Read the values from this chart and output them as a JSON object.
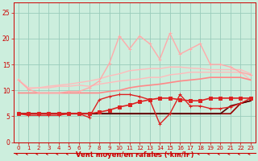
{
  "title": "",
  "xlabel": "Vent moyen/en rafales ( km/h )",
  "bg_color": "#cceedd",
  "grid_color": "#99ccbb",
  "x": [
    0,
    1,
    2,
    3,
    4,
    5,
    6,
    7,
    8,
    9,
    10,
    11,
    12,
    13,
    14,
    15,
    16,
    17,
    18,
    19,
    20,
    21,
    22,
    23
  ],
  "lines": [
    {
      "y": [
        12.0,
        10.3,
        10.5,
        10.5,
        10.8,
        10.8,
        11.0,
        10.8,
        11.2,
        11.5,
        11.8,
        12.0,
        12.2,
        12.5,
        12.5,
        13.0,
        13.2,
        13.5,
        13.5,
        13.5,
        13.5,
        13.5,
        13.5,
        12.0
      ],
      "color": "#ffbbbb",
      "lw": 1.0,
      "marker": null,
      "ms": 0
    },
    {
      "y": [
        12.0,
        10.5,
        10.5,
        10.8,
        11.0,
        11.2,
        11.5,
        11.8,
        12.2,
        12.8,
        13.2,
        13.8,
        14.0,
        14.2,
        14.2,
        14.5,
        14.5,
        14.3,
        14.2,
        14.0,
        14.0,
        14.0,
        14.0,
        13.2
      ],
      "color": "#ffbbbb",
      "lw": 1.0,
      "marker": null,
      "ms": 0
    },
    {
      "y": [
        12.0,
        10.2,
        9.5,
        9.5,
        9.5,
        9.8,
        9.8,
        10.5,
        11.8,
        15.2,
        20.5,
        18.0,
        20.5,
        19.0,
        16.0,
        21.0,
        17.0,
        18.0,
        19.0,
        15.0,
        15.0,
        14.5,
        13.5,
        13.0
      ],
      "color": "#ffaaaa",
      "lw": 1.0,
      "marker": "+",
      "ms": 3
    },
    {
      "y": [
        9.5,
        9.5,
        9.5,
        9.5,
        9.5,
        9.5,
        9.5,
        9.5,
        9.5,
        9.8,
        10.0,
        10.5,
        10.8,
        11.0,
        11.2,
        11.5,
        11.8,
        12.0,
        12.2,
        12.5,
        12.5,
        12.5,
        12.5,
        12.0
      ],
      "color": "#ff8888",
      "lw": 1.2,
      "marker": null,
      "ms": 0
    },
    {
      "y": [
        5.5,
        5.5,
        5.5,
        5.5,
        5.5,
        5.5,
        5.5,
        5.5,
        5.8,
        6.2,
        6.8,
        7.2,
        7.8,
        8.2,
        8.5,
        8.5,
        8.2,
        8.0,
        8.0,
        8.5,
        8.5,
        8.5,
        8.5,
        8.5
      ],
      "color": "#dd2222",
      "lw": 1.2,
      "marker": "s",
      "ms": 2.5
    },
    {
      "y": [
        5.5,
        5.2,
        5.2,
        5.2,
        5.2,
        5.5,
        5.5,
        4.8,
        8.2,
        8.8,
        9.2,
        9.2,
        8.8,
        8.2,
        3.5,
        5.5,
        9.2,
        7.0,
        7.0,
        6.5,
        6.5,
        6.8,
        7.5,
        8.5
      ],
      "color": "#dd2222",
      "lw": 1.0,
      "marker": "+",
      "ms": 3
    },
    {
      "y": [
        5.5,
        5.5,
        5.5,
        5.5,
        5.5,
        5.5,
        5.5,
        5.5,
        5.5,
        5.5,
        5.5,
        5.5,
        5.5,
        5.5,
        5.5,
        5.5,
        5.5,
        5.5,
        5.5,
        5.5,
        5.5,
        5.5,
        7.5,
        8.0
      ],
      "color": "#990000",
      "lw": 1.2,
      "marker": null,
      "ms": 0
    },
    {
      "y": [
        5.5,
        5.5,
        5.5,
        5.5,
        5.5,
        5.5,
        5.5,
        5.5,
        5.5,
        5.5,
        5.5,
        5.5,
        5.5,
        5.5,
        5.5,
        5.5,
        5.5,
        5.5,
        5.5,
        5.5,
        5.5,
        7.0,
        7.5,
        8.0
      ],
      "color": "#550000",
      "lw": 1.2,
      "marker": null,
      "ms": 0
    }
  ],
  "ylim": [
    0,
    27
  ],
  "xlim": [
    -0.5,
    23.5
  ],
  "yticks": [
    0,
    5,
    10,
    15,
    20,
    25
  ],
  "xticks": [
    0,
    1,
    2,
    3,
    4,
    5,
    6,
    7,
    8,
    9,
    10,
    11,
    12,
    13,
    14,
    15,
    16,
    17,
    18,
    19,
    20,
    21,
    22,
    23
  ],
  "tick_color": "#cc0000",
  "label_color": "#cc0000",
  "axis_color": "#cc0000",
  "arrow_color": "#cc0000"
}
